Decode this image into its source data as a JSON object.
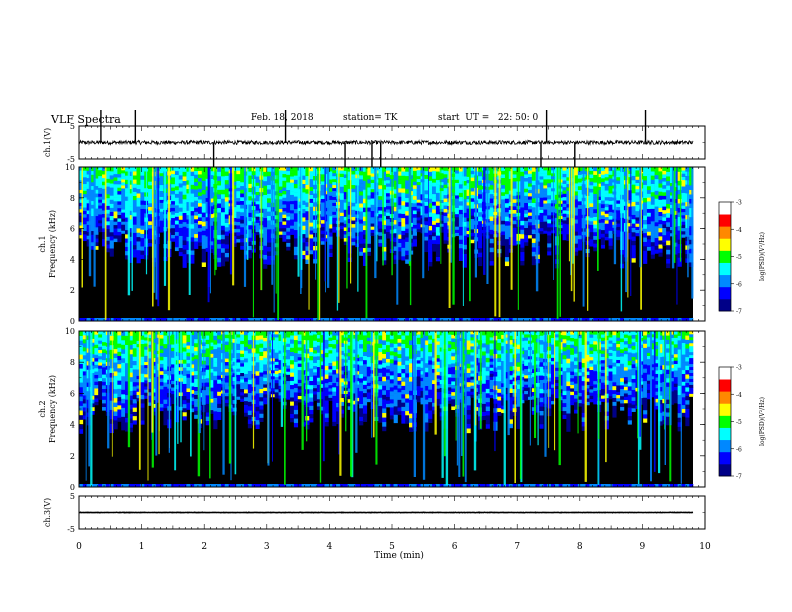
{
  "header": {
    "title": "VLF Spectra",
    "date": "Feb. 18, 2018",
    "station": "station= TK",
    "start": "start  UT =   22: 50: 0"
  },
  "chart_data": [
    {
      "type": "line",
      "name": "ch1-waveform",
      "ylabel": "ch.1(V)",
      "ylim": [
        -5,
        5
      ],
      "yticks": [
        "5",
        "-5"
      ],
      "xlim": [
        0,
        10
      ],
      "baseline": 0,
      "noise_amplitude_v": 0.6,
      "spikes_min": [
        0.35,
        0.9,
        2.15,
        3.3,
        4.25,
        4.68,
        4.82,
        7.38,
        7.47,
        7.92,
        9.05
      ],
      "color": "#000000"
    },
    {
      "type": "heatmap",
      "name": "ch1-spectrogram",
      "ylabel": "ch.1\nFrequency (kHz)",
      "ylim": [
        0,
        10
      ],
      "yticks": [
        "0",
        "2",
        "4",
        "6",
        "8",
        "10"
      ],
      "xlim": [
        0,
        10
      ],
      "value_range": [
        -7,
        -3
      ],
      "dominant_band_khz": [
        7,
        10
      ]
    },
    {
      "type": "heatmap",
      "name": "ch2-spectrogram",
      "ylabel": "ch.2\nFrequency (kHz)",
      "ylim": [
        0,
        10
      ],
      "yticks": [
        "0",
        "2",
        "4",
        "6",
        "8",
        "10"
      ],
      "xlim": [
        0,
        10
      ],
      "value_range": [
        -7,
        -3
      ],
      "dominant_band_khz": [
        7,
        10
      ]
    },
    {
      "type": "line",
      "name": "ch3-waveform",
      "ylabel": "ch.3(V)",
      "ylim": [
        -5,
        5
      ],
      "yticks": [
        "5",
        "-5"
      ],
      "xlim": [
        0,
        10
      ],
      "baseline": 0,
      "noise_amplitude_v": 0.05,
      "color": "#000000"
    }
  ],
  "x_axis": {
    "label": "Time  (min)",
    "ticks": [
      "0",
      "1",
      "2",
      "3",
      "4",
      "5",
      "6",
      "7",
      "8",
      "9",
      "10"
    ]
  },
  "colorbar": {
    "label": "log(PSD)(V²/Hz)",
    "ticks": [
      "-3",
      "-4",
      "-5",
      "-6",
      "-7"
    ],
    "colors": [
      "#000088",
      "#0000ff",
      "#0088ff",
      "#00ffff",
      "#00ff00",
      "#ffff00",
      "#ff8800",
      "#ff0000",
      "#ffffff"
    ]
  }
}
